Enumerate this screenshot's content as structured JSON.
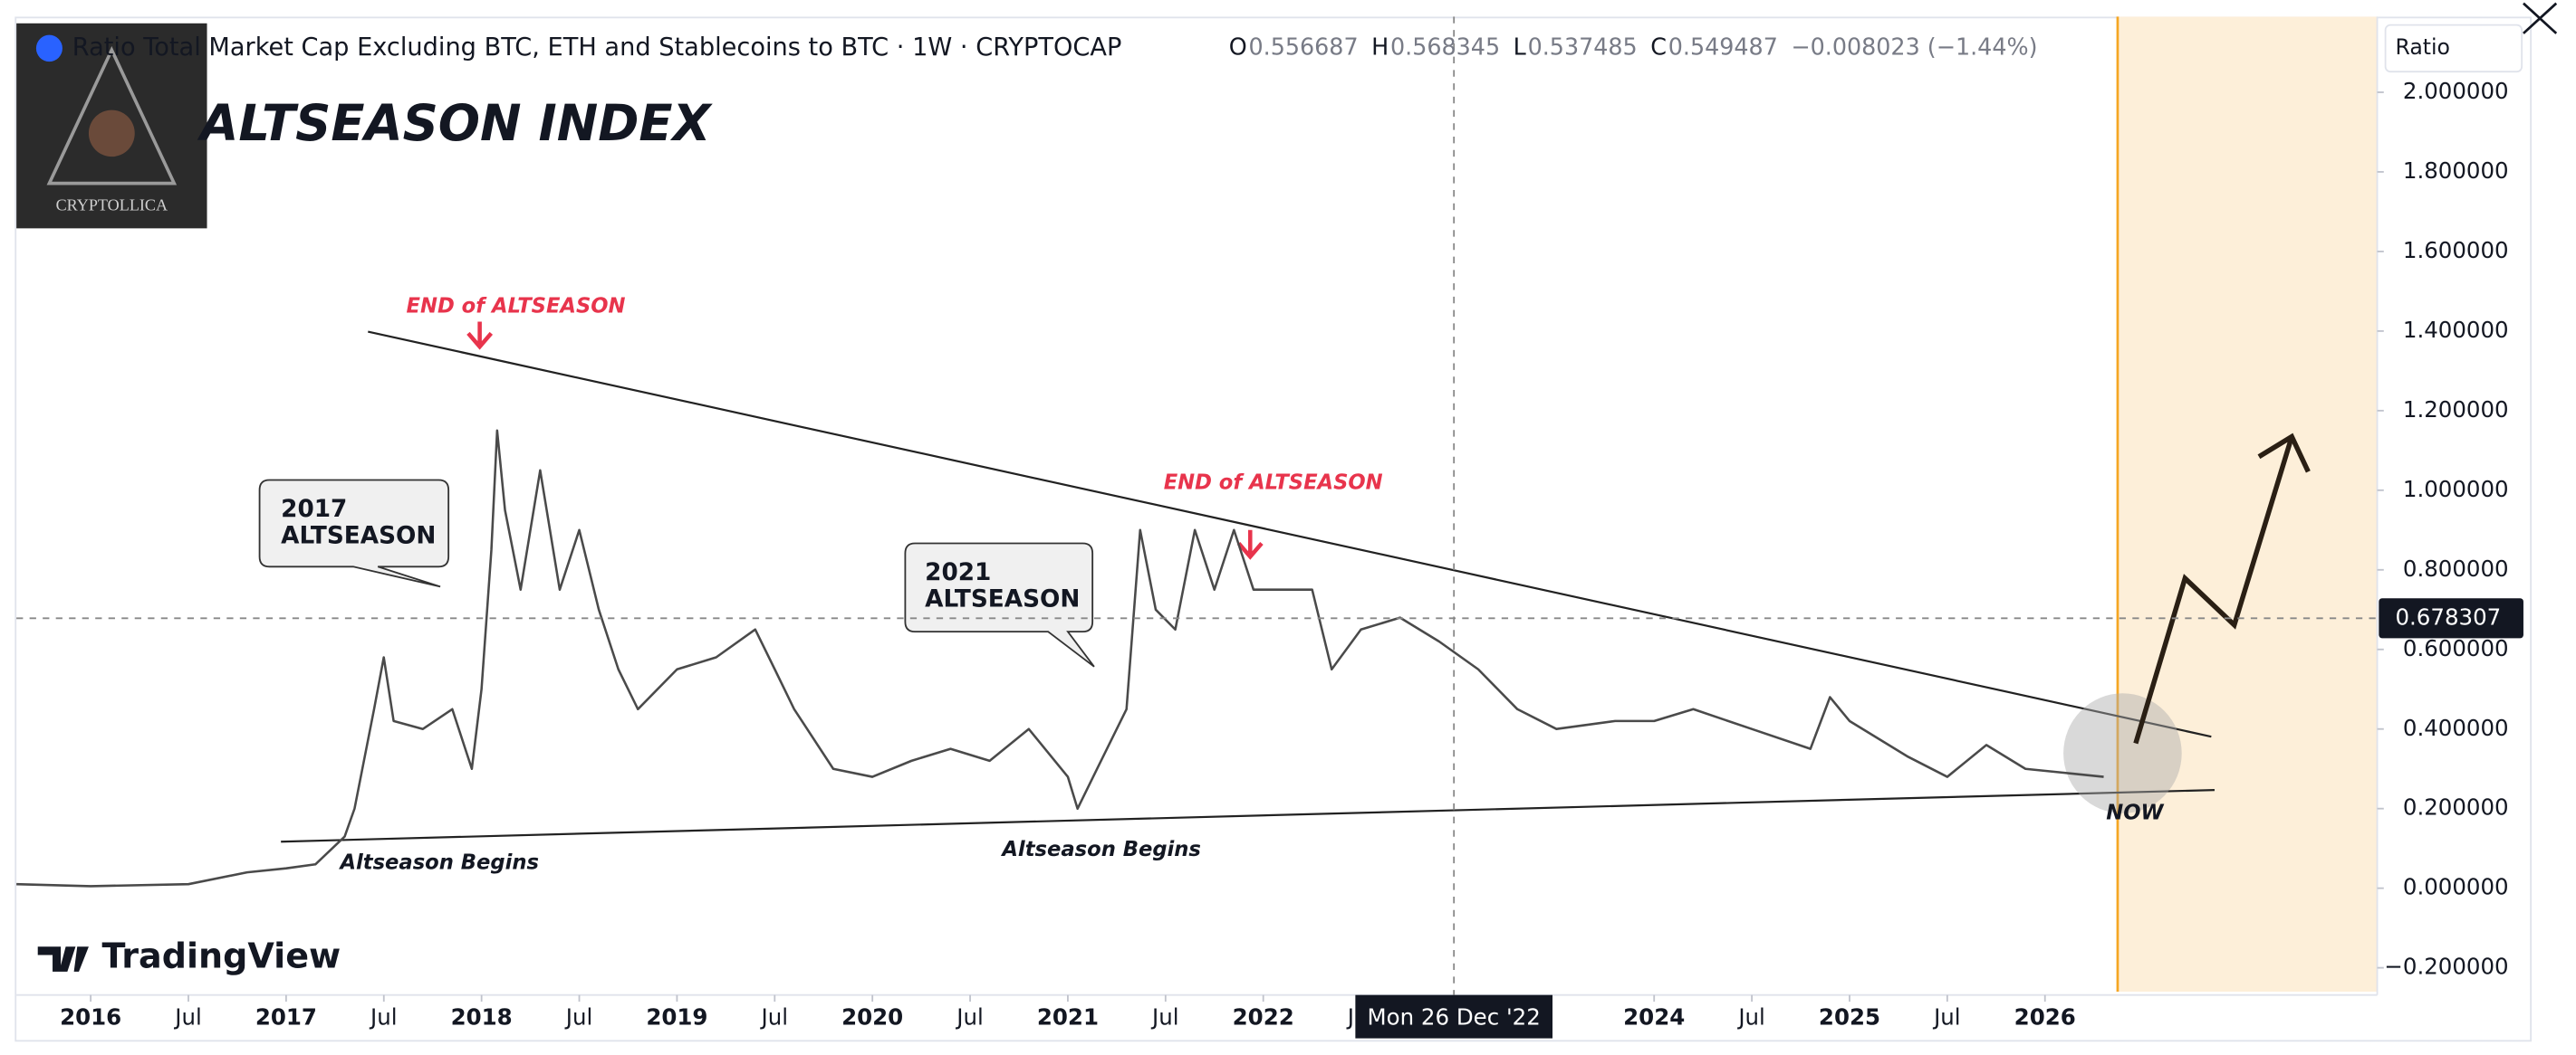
{
  "chart_data": {
    "type": "line",
    "title": "Ratio Total Market Cap Excluding BTC, ETH and Stablecoins to BTC · 1W · CRYPTOCAP",
    "ohlc": [
      {
        "label": "O",
        "value": 0.556687
      },
      {
        "label": "H",
        "value": 0.568345
      },
      {
        "label": "L",
        "value": 0.537485
      },
      {
        "label": "C",
        "value": 0.549487
      }
    ],
    "change": "−0.008023 (−1.44%)",
    "headline": "ALTSEASON INDEX",
    "logo_text": "CRYPTOLLICA",
    "brand": "TradingView",
    "axis_label": "Ratio",
    "crosshair_value": 0.678307,
    "crosshair_date": "Mon 26 Dec '22",
    "annotations": [
      {
        "text": "END of ALTSEASON"
      },
      {
        "text": "END of ALTSEASON"
      },
      {
        "lines": [
          "2017",
          "ALTSEASON"
        ]
      },
      {
        "lines": [
          "2021",
          "ALTSEASON"
        ]
      },
      {
        "text": "Altseason Begins"
      },
      {
        "text": "Altseason Begins"
      },
      {
        "text": "NOW"
      }
    ],
    "series": [
      {
        "name": "Ratio",
        "color": "#4a4a4a",
        "x": [
          2015.62,
          2016.0,
          2016.5,
          2016.8,
          2017.0,
          2017.15,
          2017.3,
          2017.35,
          2017.45,
          2017.5,
          2017.55,
          2017.7,
          2017.85,
          2017.95,
          2018.0,
          2018.05,
          2018.08,
          2018.12,
          2018.2,
          2018.3,
          2018.4,
          2018.5,
          2018.6,
          2018.7,
          2018.8,
          2019.0,
          2019.2,
          2019.4,
          2019.5,
          2019.6,
          2019.8,
          2020.0,
          2020.2,
          2020.4,
          2020.6,
          2020.8,
          2021.0,
          2021.05,
          2021.15,
          2021.3,
          2021.37,
          2021.45,
          2021.55,
          2021.65,
          2021.75,
          2021.85,
          2021.95,
          2022.1,
          2022.25,
          2022.35,
          2022.5,
          2022.7,
          2022.9,
          2023.1,
          2023.3,
          2023.5,
          2023.8,
          2024.0,
          2024.2,
          2024.5,
          2024.8,
          2024.9,
          2025.0,
          2025.3,
          2025.5,
          2025.7,
          2025.9,
          2026.1,
          2026.3
        ],
        "values": [
          0.01,
          0.005,
          0.01,
          0.04,
          0.05,
          0.06,
          0.13,
          0.2,
          0.45,
          0.58,
          0.42,
          0.4,
          0.45,
          0.3,
          0.5,
          0.85,
          1.15,
          0.95,
          0.75,
          1.05,
          0.75,
          0.9,
          0.7,
          0.55,
          0.45,
          0.55,
          0.58,
          0.65,
          0.55,
          0.45,
          0.3,
          0.28,
          0.32,
          0.35,
          0.32,
          0.4,
          0.28,
          0.2,
          0.3,
          0.45,
          0.9,
          0.7,
          0.65,
          0.9,
          0.75,
          0.9,
          0.75,
          0.75,
          0.75,
          0.55,
          0.65,
          0.68,
          0.62,
          0.55,
          0.45,
          0.4,
          0.42,
          0.42,
          0.45,
          0.4,
          0.35,
          0.48,
          0.42,
          0.33,
          0.28,
          0.36,
          0.3,
          0.29,
          0.28
        ]
      }
    ],
    "xlim": [
      2015.62,
      2027.7
    ],
    "xticks": [
      2016,
      {
        "value": 2016.5,
        "label": "Jul"
      },
      2017,
      {
        "value": 2017.5,
        "label": "Jul"
      },
      2018,
      {
        "value": 2018.5,
        "label": "Jul"
      },
      2019,
      {
        "value": 2019.5,
        "label": "Jul"
      },
      2020,
      {
        "value": 2020.5,
        "label": "Jul"
      },
      2021,
      {
        "value": 2021.5,
        "label": "Jul"
      },
      2022,
      {
        "value": 2022.5,
        "label": "Jul"
      },
      2024,
      {
        "value": 2024.5,
        "label": "Jul"
      },
      2025,
      {
        "value": 2025.5,
        "label": "Jul"
      },
      2026
    ],
    "ylim": [
      -0.26,
      2.19
    ],
    "yticks": [
      {
        "value": -0.2,
        "label": "−0.200000"
      },
      {
        "value": 0,
        "label": "0.000000"
      },
      {
        "value": 0.2,
        "label": "0.200000"
      },
      {
        "value": 0.4,
        "label": "0.400000"
      },
      {
        "value": 0.6,
        "label": "0.600000"
      },
      {
        "value": 0.8,
        "label": "0.800000"
      },
      {
        "value": 1,
        "label": "1.000000"
      },
      {
        "value": 1.2,
        "label": "1.200000"
      },
      {
        "value": 1.4,
        "label": "1.400000"
      },
      {
        "value": 1.6,
        "label": "1.600000"
      },
      {
        "value": 1.8,
        "label": "1.800000"
      },
      {
        "value": 2,
        "label": "2.000000"
      }
    ],
    "grid": false
  }
}
